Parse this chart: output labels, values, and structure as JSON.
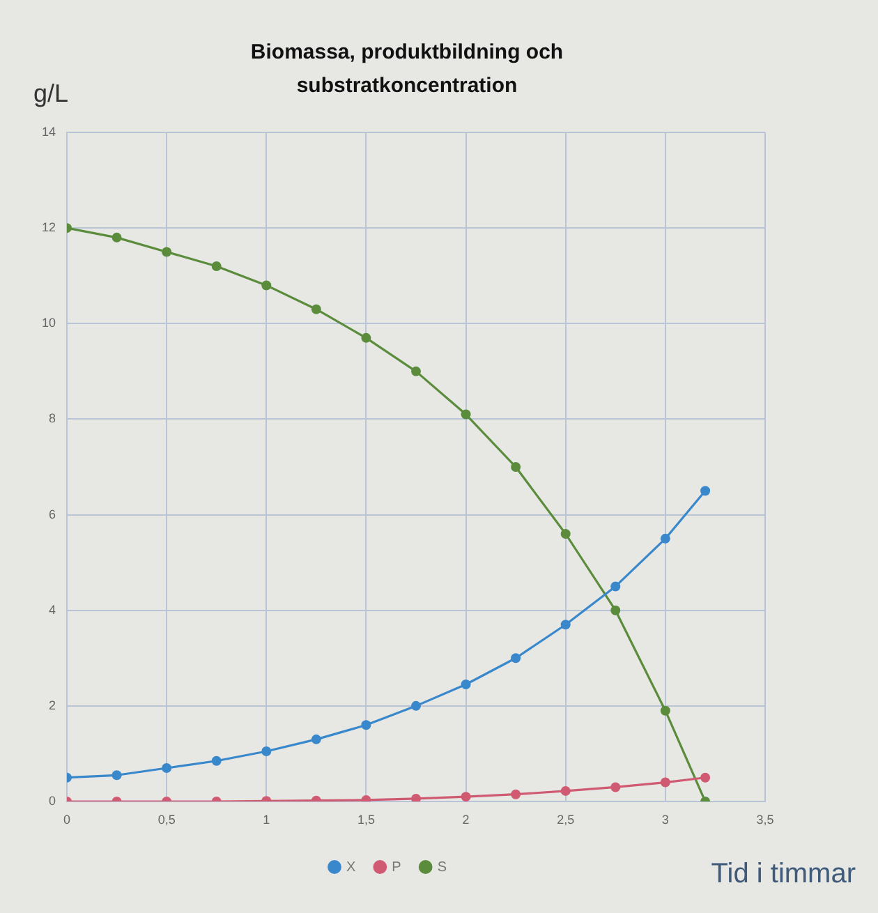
{
  "chart_data": {
    "type": "line",
    "title": "Biomassa, produktbildning och substratkoncentration",
    "xlabel": "Tid i timmar",
    "ylabel": "g/L",
    "x": [
      0,
      0.25,
      0.5,
      0.75,
      1,
      1.25,
      1.5,
      1.75,
      2,
      2.25,
      2.5,
      2.75,
      3,
      3.2
    ],
    "xlim": [
      0,
      3.5
    ],
    "xticks": [
      0,
      {
        "value": 0.5,
        "label": "0,5"
      },
      1,
      {
        "value": 1.5,
        "label": "1,5"
      },
      2,
      {
        "value": 2.5,
        "label": "2,5"
      },
      3,
      {
        "value": 3.5,
        "label": "3,5"
      }
    ],
    "ylim": [
      0,
      14
    ],
    "yticks": [
      0,
      2,
      4,
      6,
      8,
      10,
      12,
      14
    ],
    "grid": true,
    "legend": "bottom",
    "marker": "circle",
    "series": [
      {
        "name": "X",
        "color": "#3a88cc",
        "values": [
          0.5,
          0.55,
          0.7,
          0.85,
          1.05,
          1.3,
          1.6,
          2.0,
          2.45,
          3.0,
          3.7,
          4.5,
          5.5,
          6.5
        ]
      },
      {
        "name": "P",
        "color": "#d05a72",
        "values": [
          0,
          0,
          0,
          0,
          0.01,
          0.02,
          0.03,
          0.06,
          0.1,
          0.15,
          0.22,
          0.3,
          0.4,
          0.5
        ]
      },
      {
        "name": "S",
        "color": "#5a8c3c",
        "values": [
          12,
          11.8,
          11.5,
          11.2,
          10.8,
          10.3,
          9.7,
          9.0,
          8.1,
          7.0,
          5.6,
          4.0,
          1.9,
          0
        ]
      }
    ]
  }
}
